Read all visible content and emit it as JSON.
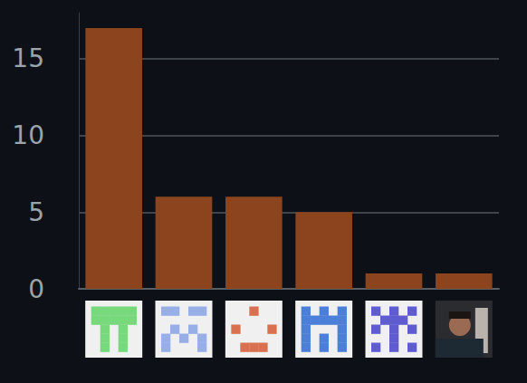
{
  "chart_data": {
    "type": "bar",
    "categories": [
      null,
      null,
      null,
      null,
      null,
      null
    ],
    "values": [
      17,
      6,
      6,
      5,
      1,
      1
    ],
    "color": "#8b441e",
    "ylim": [
      0,
      18
    ],
    "yticks": [
      0,
      5,
      10,
      15
    ],
    "grid": true
  }
}
